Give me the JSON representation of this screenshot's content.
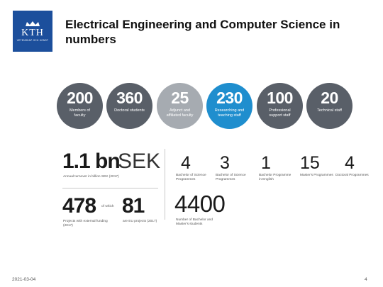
{
  "logo": {
    "wordmark": "KTH",
    "subtext": "VETENSKAP OCH KONST"
  },
  "title": "Electrical Engineering and Computer Science in numbers",
  "colors": {
    "brand": "#1c4f9c",
    "dark_circle": "#595f68",
    "light_circle": "#a6abb1",
    "blue_circle": "#1f8ece"
  },
  "circles": [
    {
      "value": "200",
      "label": "Members of faculty"
    },
    {
      "value": "360",
      "label": "Doctoral students"
    },
    {
      "value": "25",
      "label": "Adjunct and affiliated faculty"
    },
    {
      "value": "230",
      "label": "Researching and teaching staff"
    },
    {
      "value": "100",
      "label": "Professional support staff"
    },
    {
      "value": "20",
      "label": "Technical staff"
    }
  ],
  "turnover": {
    "value": "1.1 bn",
    "unit": "SEK",
    "label": "Annual turnover in billion SEK (2017)"
  },
  "projects": {
    "value": "478",
    "connector": "of which",
    "eu_value": "81",
    "label": "Projects with external funding (2017)",
    "eu_label": "are EU projects (2017)"
  },
  "programmes": [
    {
      "value": "4",
      "label": "Bachelor of Science Programmes"
    },
    {
      "value": "3",
      "label": "Bachelor of Science Programmes"
    },
    {
      "value": "1",
      "label": "Bachelor Programme in English"
    },
    {
      "value": "15",
      "label": "Master's Programmes"
    },
    {
      "value": "4",
      "label": "Doctoral Programmes"
    }
  ],
  "students": {
    "value": "4400",
    "label": "Number of Bachelor and Master's students"
  },
  "footer": {
    "date": "2021-03-04",
    "page": "4"
  }
}
